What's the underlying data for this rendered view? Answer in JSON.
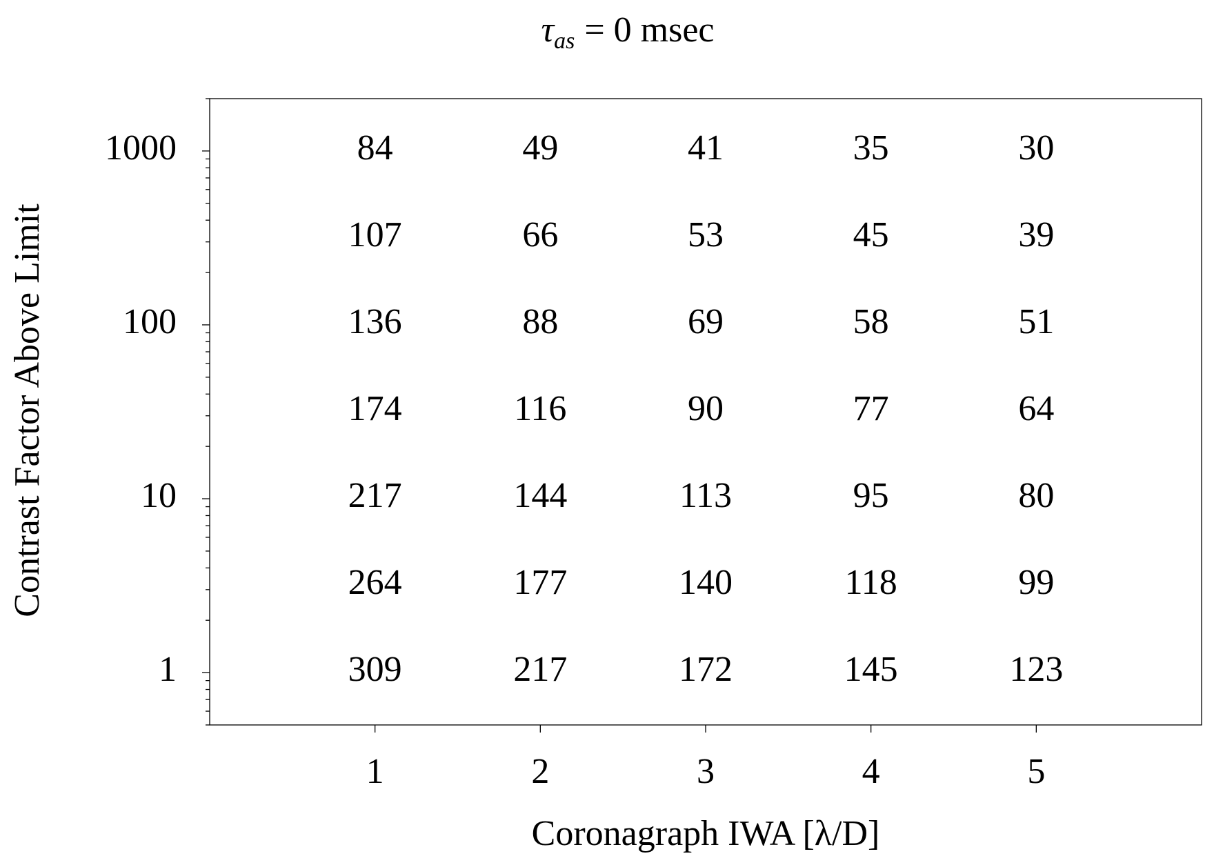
{
  "chart_data": {
    "type": "text-grid",
    "title": {
      "symbol": "τ",
      "subscript": "as",
      "text": "= 0 msec"
    },
    "xlabel": "Coronagraph IWA [λ/D]",
    "ylabel": "Contrast Factor Above Limit",
    "x": [
      1,
      2,
      3,
      4,
      5
    ],
    "y": [
      1000,
      316,
      100,
      31.6,
      10,
      3.16,
      1
    ],
    "values": [
      [
        84,
        49,
        41,
        35,
        30
      ],
      [
        107,
        66,
        53,
        45,
        39
      ],
      [
        136,
        88,
        69,
        58,
        51
      ],
      [
        174,
        116,
        90,
        77,
        64
      ],
      [
        217,
        144,
        113,
        95,
        80
      ],
      [
        264,
        177,
        140,
        118,
        99
      ],
      [
        309,
        217,
        172,
        145,
        123
      ]
    ],
    "xlim": [
      0,
      6
    ],
    "xticks": [
      1,
      2,
      3,
      4,
      5
    ],
    "ylim": [
      0.5,
      2000
    ],
    "yticks": [
      1,
      10,
      100,
      1000
    ],
    "yscale": "log",
    "grid": false
  }
}
